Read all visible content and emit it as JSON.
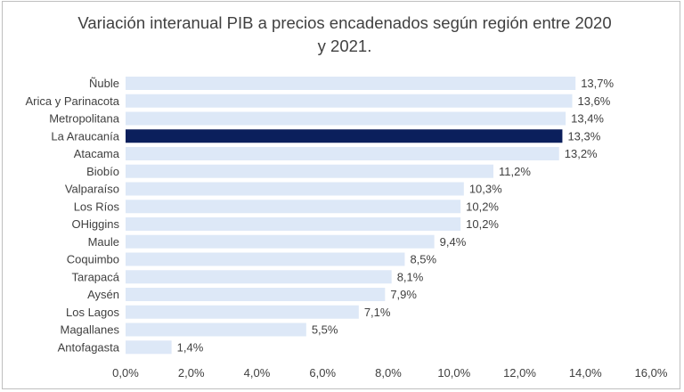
{
  "chart_data": {
    "type": "bar",
    "orientation": "horizontal",
    "title_lines": [
      "Variación interanual PIB a precios encadenados según región entre 2020",
      "y 2021."
    ],
    "categories": [
      "Ñuble",
      "Arica y Parinacota",
      "Metropolitana",
      "La Araucanía",
      "Atacama",
      "Biobío",
      "Valparaíso",
      "Los Ríos",
      "OHiggins",
      "Maule",
      "Coquimbo",
      "Tarapacá",
      "Aysén",
      "Los Lagos",
      "Magallanes",
      "Antofagasta"
    ],
    "values": [
      13.7,
      13.6,
      13.4,
      13.3,
      13.2,
      11.2,
      10.3,
      10.2,
      10.2,
      9.4,
      8.5,
      8.1,
      7.9,
      7.1,
      5.5,
      1.4
    ],
    "data_labels": [
      "13,7%",
      "13,6%",
      "13,4%",
      "13,3%",
      "13,2%",
      "11,2%",
      "10,3%",
      "10,2%",
      "10,2%",
      "9,4%",
      "8,5%",
      "8,1%",
      "7,9%",
      "7,1%",
      "5,5%",
      "1,4%"
    ],
    "xlim": [
      0,
      16
    ],
    "xticks": [
      0,
      2,
      4,
      6,
      8,
      10,
      12,
      14,
      16
    ],
    "xtick_labels": [
      "0,0%",
      "2,0%",
      "4,0%",
      "6,0%",
      "8,0%",
      "10,0%",
      "12,0%",
      "14,0%",
      "16,0%"
    ],
    "highlight_category": "La Araucanía",
    "grid": false,
    "legend": "none",
    "colors": {
      "bar": "#dde8f7",
      "highlight": "#0b1f5c",
      "text": "#404040",
      "border": "#bfbfbf"
    }
  }
}
